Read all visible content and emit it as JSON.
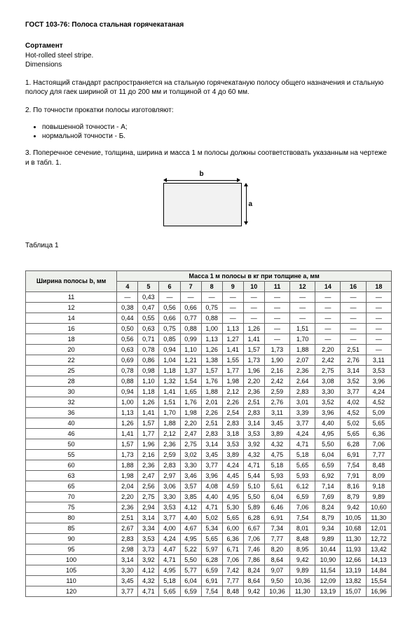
{
  "title": "ГОСТ 103-76: Полоса стальная горячекатаная",
  "subhead": {
    "l1": "Сортамент",
    "l2": "Hot-rolled steel stripe.",
    "l3": "Dimensions"
  },
  "para1": "1. Настоящий стандарт распространяется на стальную горячекатаную полосу общего назначения и стальную полосу для гаек шириной от 11 до 200 мм и толщиной от 4 до 60 мм.",
  "para2": "2. По точности прокатки полосы изготовляют:",
  "list": [
    "повышенной точности - А;",
    "нормальной точности - Б."
  ],
  "para3": "3. Поперечное сечение, толщина, ширина и масса 1 м полосы должны соответствовать указанным на чертеже и в табл. 1.",
  "diagram": {
    "b": "b",
    "a": "a"
  },
  "tableCaption": "Таблица 1",
  "table": {
    "header1": "Ширина полосы b, мм",
    "header2": "Масса 1 м полосы в кг при толщине а, мм",
    "thicknesses": [
      "4",
      "5",
      "6",
      "7",
      "8",
      "9",
      "10",
      "11",
      "12",
      "14",
      "16",
      "18"
    ],
    "rows": [
      {
        "b": "11",
        "v": [
          "—",
          "0,43",
          "—",
          "—",
          "—",
          "—",
          "—",
          "—",
          "—",
          "—",
          "—",
          "—"
        ]
      },
      {
        "b": "12",
        "v": [
          "0,38",
          "0,47",
          "0,56",
          "0,66",
          "0,75",
          "—",
          "—",
          "—",
          "—",
          "—",
          "—",
          "—"
        ]
      },
      {
        "b": "14",
        "v": [
          "0,44",
          "0,55",
          "0,66",
          "0,77",
          "0,88",
          "—",
          "—",
          "—",
          "—",
          "—",
          "—",
          "—"
        ]
      },
      {
        "b": "16",
        "v": [
          "0,50",
          "0,63",
          "0,75",
          "0,88",
          "1,00",
          "1,13",
          "1,26",
          "—",
          "1,51",
          "—",
          "—",
          "—"
        ]
      },
      {
        "b": "18",
        "v": [
          "0,56",
          "0,71",
          "0,85",
          "0,99",
          "1,13",
          "1,27",
          "1,41",
          "—",
          "1,70",
          "—",
          "—",
          "—"
        ]
      },
      {
        "b": "20",
        "v": [
          "0,63",
          "0,78",
          "0,94",
          "1,10",
          "1,26",
          "1,41",
          "1,57",
          "1,73",
          "1,88",
          "2,20",
          "2,51",
          "—"
        ]
      },
      {
        "b": "22",
        "v": [
          "0,69",
          "0,86",
          "1,04",
          "1,21",
          "1,38",
          "1,55",
          "1,73",
          "1,90",
          "2,07",
          "2,42",
          "2,76",
          "3,11"
        ]
      },
      {
        "b": "25",
        "v": [
          "0,78",
          "0,98",
          "1,18",
          "1,37",
          "1,57",
          "1,77",
          "1,96",
          "2,16",
          "2,36",
          "2,75",
          "3,14",
          "3,53"
        ]
      },
      {
        "b": "28",
        "v": [
          "0,88",
          "1,10",
          "1,32",
          "1,54",
          "1,76",
          "1,98",
          "2,20",
          "2,42",
          "2,64",
          "3,08",
          "3,52",
          "3,96"
        ]
      },
      {
        "b": "30",
        "v": [
          "0,94",
          "1,18",
          "1,41",
          "1,65",
          "1,88",
          "2,12",
          "2,36",
          "2,59",
          "2,83",
          "3,30",
          "3,77",
          "4,24"
        ]
      },
      {
        "b": "32",
        "v": [
          "1,00",
          "1,26",
          "1,51",
          "1,76",
          "2,01",
          "2,26",
          "2,51",
          "2,76",
          "3,01",
          "3,52",
          "4,02",
          "4,52"
        ]
      },
      {
        "b": "36",
        "v": [
          "1,13",
          "1,41",
          "1,70",
          "1,98",
          "2,26",
          "2,54",
          "2,83",
          "3,11",
          "3,39",
          "3,96",
          "4,52",
          "5,09"
        ]
      },
      {
        "b": "40",
        "v": [
          "1,26",
          "1,57",
          "1,88",
          "2,20",
          "2,51",
          "2,83",
          "3,14",
          "3,45",
          "3,77",
          "4,40",
          "5,02",
          "5,65"
        ]
      },
      {
        "b": "46",
        "v": [
          "1,41",
          "1,77",
          "2,12",
          "2,47",
          "2,83",
          "3,18",
          "3,53",
          "3,89",
          "4,24",
          "4,95",
          "5,65",
          "6,36"
        ]
      },
      {
        "b": "50",
        "v": [
          "1,57",
          "1,96",
          "2,36",
          "2,75",
          "3,14",
          "3,53",
          "3,92",
          "4,32",
          "4,71",
          "5,50",
          "6,28",
          "7,06"
        ]
      },
      {
        "b": "55",
        "v": [
          "1,73",
          "2,16",
          "2,59",
          "3,02",
          "3,45",
          "3,89",
          "4,32",
          "4,75",
          "5,18",
          "6,04",
          "6,91",
          "7,77"
        ]
      },
      {
        "b": "60",
        "v": [
          "1,88",
          "2,36",
          "2,83",
          "3,30",
          "3,77",
          "4,24",
          "4,71",
          "5,18",
          "5,65",
          "6,59",
          "7,54",
          "8,48"
        ]
      },
      {
        "b": "63",
        "v": [
          "1,98",
          "2,47",
          "2,97",
          "3,46",
          "3,96",
          "4,45",
          "5,44",
          "5,93",
          "5,93",
          "6,92",
          "7,91",
          "8,09"
        ]
      },
      {
        "b": "65",
        "v": [
          "2,04",
          "2,56",
          "3,06",
          "3,57",
          "4,08",
          "4,59",
          "5,10",
          "5,61",
          "6,12",
          "7,14",
          "8,16",
          "9,18"
        ]
      },
      {
        "b": "70",
        "v": [
          "2,20",
          "2,75",
          "3,30",
          "3,85",
          "4,40",
          "4,95",
          "5,50",
          "6,04",
          "6,59",
          "7,69",
          "8,79",
          "9,89"
        ]
      },
      {
        "b": "75",
        "v": [
          "2,36",
          "2,94",
          "3,53",
          "4,12",
          "4,71",
          "5,30",
          "5,89",
          "6,46",
          "7,06",
          "8,24",
          "9,42",
          "10,60"
        ]
      },
      {
        "b": "80",
        "v": [
          "2,51",
          "3,14",
          "3,77",
          "4,40",
          "5,02",
          "5,65",
          "6,28",
          "6,91",
          "7,54",
          "8,79",
          "10,05",
          "11,30"
        ]
      },
      {
        "b": "85",
        "v": [
          "2,67",
          "3,34",
          "4,00",
          "4,67",
          "5,34",
          "6,00",
          "6,67",
          "7,34",
          "8,01",
          "9,34",
          "10,68",
          "12,01"
        ]
      },
      {
        "b": "90",
        "v": [
          "2,83",
          "3,53",
          "4,24",
          "4,95",
          "5,65",
          "6,36",
          "7,06",
          "7,77",
          "8,48",
          "9,89",
          "11,30",
          "12,72"
        ]
      },
      {
        "b": "95",
        "v": [
          "2,98",
          "3,73",
          "4,47",
          "5,22",
          "5,97",
          "6,71",
          "7,46",
          "8,20",
          "8,95",
          "10,44",
          "11,93",
          "13,42"
        ]
      },
      {
        "b": "100",
        "v": [
          "3,14",
          "3,92",
          "4,71",
          "5,50",
          "6,28",
          "7,06",
          "7,86",
          "8,64",
          "9,42",
          "10,90",
          "12,66",
          "14,13"
        ]
      },
      {
        "b": "105",
        "v": [
          "3,30",
          "4,12",
          "4,95",
          "5,77",
          "6,59",
          "7,42",
          "8,24",
          "9,07",
          "9,89",
          "11,54",
          "13,19",
          "14,84"
        ]
      },
      {
        "b": "110",
        "v": [
          "3,45",
          "4,32",
          "5,18",
          "6,04",
          "6,91",
          "7,77",
          "8,64",
          "9,50",
          "10,36",
          "12,09",
          "13,82",
          "15,54"
        ]
      },
      {
        "b": "120",
        "v": [
          "3,77",
          "4,71",
          "5,65",
          "6,59",
          "7,54",
          "8,48",
          "9,42",
          "10,36",
          "11,30",
          "13,19",
          "15,07",
          "16,96"
        ]
      }
    ]
  }
}
